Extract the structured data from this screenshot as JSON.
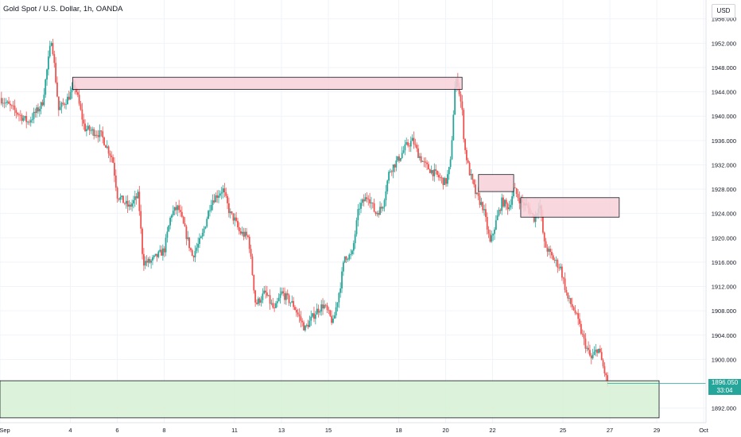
{
  "header": {
    "title": "Gold Spot / U.S. Dollar, 1h, OANDA",
    "currency": "USD"
  },
  "last_price": {
    "value": "1896.050",
    "countdown": "33:04"
  },
  "colors": {
    "up": "#26a69a",
    "down": "#ef5350",
    "grid": "#f0f3fa",
    "resistance_fill": "#f8d0d8",
    "support_fill": "#d6f0d4",
    "zone_border": "#131722",
    "price_line": "#26a69a"
  },
  "chart_data": {
    "type": "candlestick",
    "title": "Gold Spot / U.S. Dollar, 1h, OANDA",
    "ylim": [
      1889.6,
      1959.1
    ],
    "y_ticks": [
      "1956.000",
      "1952.000",
      "1948.000",
      "1944.000",
      "1940.000",
      "1936.000",
      "1932.000",
      "1928.000",
      "1924.000",
      "1920.000",
      "1916.000",
      "1912.000",
      "1908.000",
      "1904.000",
      "1900.000",
      "1896.000",
      "1892.000"
    ],
    "x_ticks": [
      {
        "label": "Sep",
        "day": 1
      },
      {
        "label": "4",
        "day": 4
      },
      {
        "label": "6",
        "day": 6
      },
      {
        "label": "8",
        "day": 8
      },
      {
        "label": "11",
        "day": 11
      },
      {
        "label": "13",
        "day": 13
      },
      {
        "label": "15",
        "day": 15
      },
      {
        "label": "18",
        "day": 18
      },
      {
        "label": "20",
        "day": 20
      },
      {
        "label": "22",
        "day": 22
      },
      {
        "label": "25",
        "day": 25
      },
      {
        "label": "27",
        "day": 27
      },
      {
        "label": "29",
        "day": 29
      },
      {
        "label": "Oct",
        "day": 31
      }
    ],
    "x_range_days": [
      1,
      31.1
    ],
    "price_path": [
      [
        1.0,
        1943
      ],
      [
        1.6,
        1941
      ],
      [
        2.2,
        1939
      ],
      [
        2.8,
        1942
      ],
      [
        3.2,
        1953
      ],
      [
        3.5,
        1941
      ],
      [
        3.9,
        1943
      ],
      [
        4.2,
        1945
      ],
      [
        4.6,
        1938
      ],
      [
        5.3,
        1937
      ],
      [
        5.8,
        1933
      ],
      [
        6.0,
        1927
      ],
      [
        6.5,
        1925
      ],
      [
        6.9,
        1927
      ],
      [
        7.1,
        1916
      ],
      [
        7.4,
        1916
      ],
      [
        7.7,
        1917
      ],
      [
        8.0,
        1918
      ],
      [
        8.3,
        1924
      ],
      [
        8.6,
        1925
      ],
      [
        8.9,
        1921
      ],
      [
        9.2,
        1917
      ],
      [
        9.6,
        1920
      ],
      [
        10.0,
        1926
      ],
      [
        10.5,
        1928
      ],
      [
        10.8,
        1924
      ],
      [
        11.0,
        1923
      ],
      [
        11.2,
        1921
      ],
      [
        11.6,
        1920
      ],
      [
        11.9,
        1909
      ],
      [
        12.3,
        1911
      ],
      [
        12.7,
        1908
      ],
      [
        13.0,
        1911
      ],
      [
        13.5,
        1909
      ],
      [
        14.0,
        1905
      ],
      [
        14.5,
        1908
      ],
      [
        14.8,
        1909
      ],
      [
        15.2,
        1906
      ],
      [
        15.5,
        1912
      ],
      [
        15.7,
        1917
      ],
      [
        16.0,
        1917
      ],
      [
        16.3,
        1925
      ],
      [
        16.7,
        1927
      ],
      [
        17.0,
        1924
      ],
      [
        17.3,
        1925
      ],
      [
        17.6,
        1931
      ],
      [
        18.0,
        1933
      ],
      [
        18.3,
        1935
      ],
      [
        18.6,
        1936
      ],
      [
        18.8,
        1934
      ],
      [
        19.1,
        1932
      ],
      [
        19.4,
        1931
      ],
      [
        19.7,
        1930
      ],
      [
        20.0,
        1929
      ],
      [
        20.2,
        1932
      ],
      [
        20.4,
        1945
      ],
      [
        20.5,
        1946
      ],
      [
        20.7,
        1941
      ],
      [
        20.8,
        1935
      ],
      [
        21.0,
        1931
      ],
      [
        21.3,
        1927
      ],
      [
        21.6,
        1925
      ],
      [
        21.9,
        1919
      ],
      [
        22.1,
        1922
      ],
      [
        22.4,
        1926
      ],
      [
        22.7,
        1925
      ],
      [
        22.9,
        1928
      ],
      [
        23.2,
        1926
      ],
      [
        23.5,
        1925
      ],
      [
        23.8,
        1923
      ],
      [
        24.0,
        1926
      ],
      [
        24.2,
        1919
      ],
      [
        24.5,
        1917
      ],
      [
        24.9,
        1915
      ],
      [
        25.2,
        1910
      ],
      [
        25.5,
        1908
      ],
      [
        25.9,
        1903
      ],
      [
        26.2,
        1900
      ],
      [
        26.5,
        1902
      ],
      [
        26.7,
        1899
      ],
      [
        26.9,
        1896.05
      ]
    ],
    "zones": [
      {
        "type": "resistance",
        "day_start": 4.1,
        "day_end": 20.7,
        "price_high": 1946.4,
        "price_low": 1944.4
      },
      {
        "type": "resistance",
        "day_start": 21.4,
        "day_end": 22.9,
        "price_high": 1930.4,
        "price_low": 1927.6
      },
      {
        "type": "resistance",
        "day_start": 23.2,
        "day_end": 27.4,
        "price_high": 1926.6,
        "price_low": 1923.4
      },
      {
        "type": "support",
        "day_start": 1.0,
        "day_end": 29.1,
        "price_high": 1896.5,
        "price_low": 1890.4
      }
    ],
    "current_price": 1896.05
  }
}
